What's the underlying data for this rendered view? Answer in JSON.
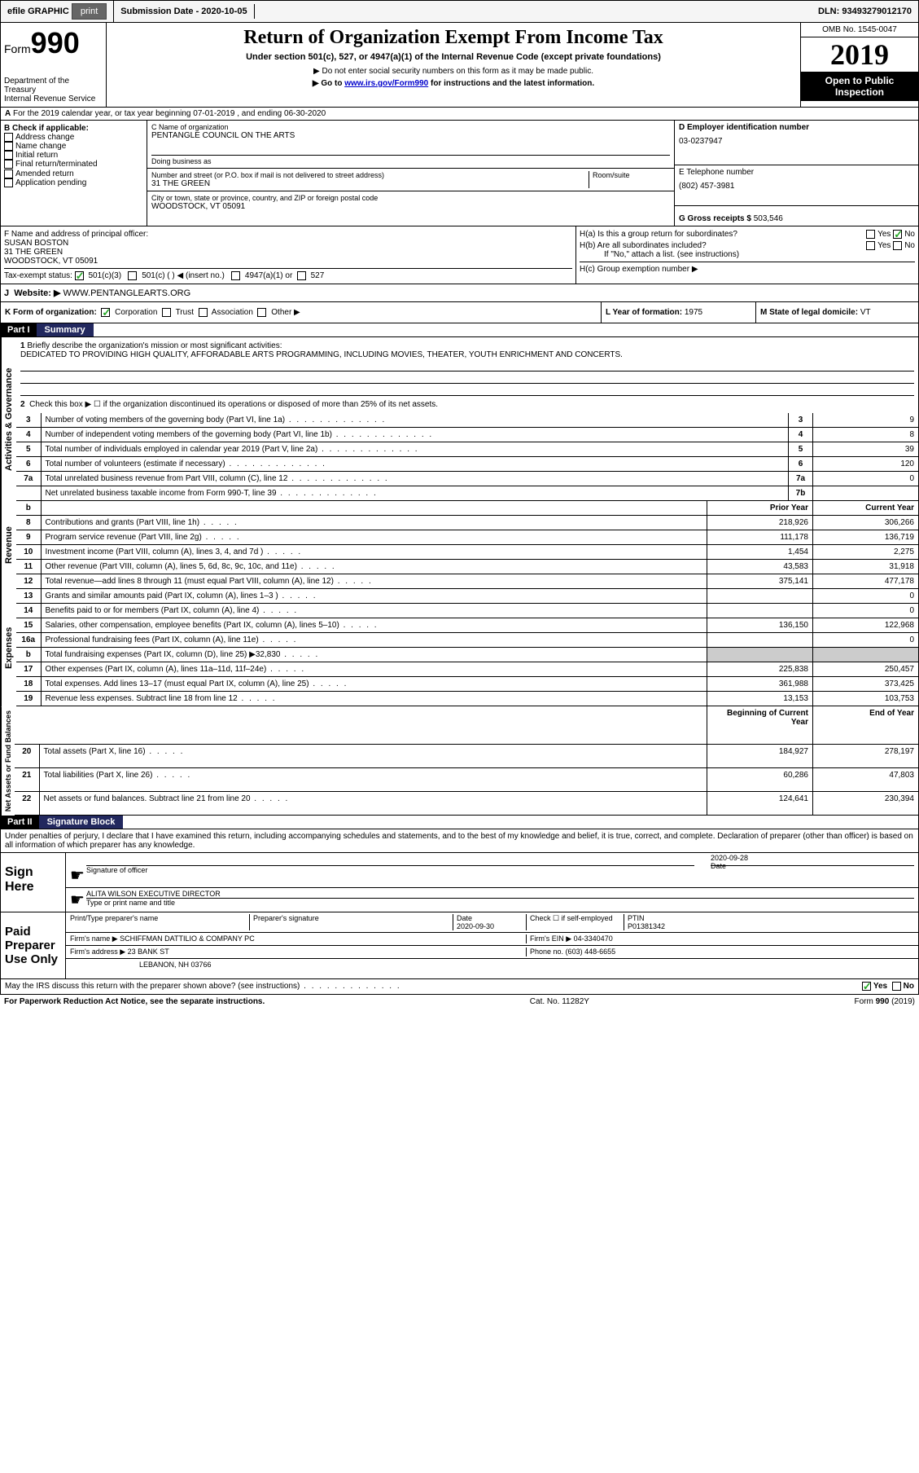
{
  "topbar": {
    "efile": "efile GRAPHIC",
    "print": "print",
    "submission_label": "Submission Date",
    "submission_date": "2020-10-05",
    "dln_label": "DLN:",
    "dln": "93493279012170"
  },
  "header": {
    "form_label": "Form",
    "form_number": "990",
    "dept": "Department of the Treasury",
    "irs": "Internal Revenue Service",
    "title": "Return of Organization Exempt From Income Tax",
    "subtitle": "Under section 501(c), 527, or 4947(a)(1) of the Internal Revenue Code (except private foundations)",
    "note1": "▶ Do not enter social security numbers on this form as it may be made public.",
    "note2_pre": "▶ Go to ",
    "note2_link": "www.irs.gov/Form990",
    "note2_post": " for instructions and the latest information.",
    "omb": "OMB No. 1545-0047",
    "year": "2019",
    "open": "Open to Public Inspection"
  },
  "section_a": "For the 2019 calendar year, or tax year beginning 07-01-2019    , and ending 06-30-2020",
  "col_b": {
    "label": "B Check if applicable:",
    "opts": [
      "Address change",
      "Name change",
      "Initial return",
      "Final return/terminated",
      "Amended return",
      "Application pending"
    ]
  },
  "col_c": {
    "name_label": "C Name of organization",
    "name": "PENTANGLE COUNCIL ON THE ARTS",
    "dba_label": "Doing business as",
    "addr_label": "Number and street (or P.O. box if mail is not delivered to street address)",
    "room_label": "Room/suite",
    "addr": "31 THE GREEN",
    "city_label": "City or town, state or province, country, and ZIP or foreign postal code",
    "city": "WOODSTOCK, VT  05091"
  },
  "col_d": {
    "ein_label": "D Employer identification number",
    "ein": "03-0237947",
    "phone_label": "E Telephone number",
    "phone": "(802) 457-3981",
    "gross_label": "G Gross receipts $",
    "gross": "503,546"
  },
  "row_f": {
    "label": "F  Name and address of principal officer:",
    "name": "SUSAN BOSTON",
    "addr1": "31 THE GREEN",
    "addr2": "WOODSTOCK, VT  05091"
  },
  "row_h": {
    "a": "H(a)  Is this a group return for subordinates?",
    "b": "H(b)  Are all subordinates included?",
    "b_note": "If \"No,\" attach a list. (see instructions)",
    "c": "H(c)  Group exemption number ▶",
    "yes": "Yes",
    "no": "No"
  },
  "row_i": {
    "label": "Tax-exempt status:",
    "opts": [
      "501(c)(3)",
      "501(c) (  ) ◀ (insert no.)",
      "4947(a)(1) or",
      "527"
    ]
  },
  "row_j": {
    "label": "J",
    "website_label": "Website: ▶",
    "website": "WWW.PENTANGLEARTS.ORG"
  },
  "row_k": {
    "label": "K Form of organization:",
    "opts": [
      "Corporation",
      "Trust",
      "Association",
      "Other ▶"
    ]
  },
  "row_l": {
    "label": "L Year of formation:",
    "val": "1975"
  },
  "row_m": {
    "label": "M State of legal domicile:",
    "val": "VT"
  },
  "part1": {
    "header": "Part I",
    "title": "Summary",
    "q1_label": "1",
    "q1": "Briefly describe the organization's mission or most significant activities:",
    "q1_text": "DEDICATED TO PROVIDING HIGH QUALITY, AFFORADABLE ARTS PROGRAMMING, INCLUDING MOVIES, THEATER, YOUTH ENRICHMENT AND CONCERTS.",
    "q2": "Check this box ▶ ☐ if the organization discontinued its operations or disposed of more than 25% of its net assets.",
    "vert_labels": [
      "Activities & Governance",
      "Revenue",
      "Expenses",
      "Net Assets or Fund Balances"
    ],
    "rows_gov": [
      {
        "n": "3",
        "label": "Number of voting members of the governing body (Part VI, line 1a)",
        "box": "3",
        "val": "9"
      },
      {
        "n": "4",
        "label": "Number of independent voting members of the governing body (Part VI, line 1b)",
        "box": "4",
        "val": "8"
      },
      {
        "n": "5",
        "label": "Total number of individuals employed in calendar year 2019 (Part V, line 2a)",
        "box": "5",
        "val": "39"
      },
      {
        "n": "6",
        "label": "Total number of volunteers (estimate if necessary)",
        "box": "6",
        "val": "120"
      },
      {
        "n": "7a",
        "label": "Total unrelated business revenue from Part VIII, column (C), line 12",
        "box": "7a",
        "val": "0"
      },
      {
        "n": "",
        "label": "Net unrelated business taxable income from Form 990-T, line 39",
        "box": "7b",
        "val": ""
      }
    ],
    "col_headers": {
      "prior": "Prior Year",
      "current": "Current Year"
    },
    "rows_rev": [
      {
        "n": "8",
        "label": "Contributions and grants (Part VIII, line 1h)",
        "prior": "218,926",
        "current": "306,266"
      },
      {
        "n": "9",
        "label": "Program service revenue (Part VIII, line 2g)",
        "prior": "111,178",
        "current": "136,719"
      },
      {
        "n": "10",
        "label": "Investment income (Part VIII, column (A), lines 3, 4, and 7d )",
        "prior": "1,454",
        "current": "2,275"
      },
      {
        "n": "11",
        "label": "Other revenue (Part VIII, column (A), lines 5, 6d, 8c, 9c, 10c, and 11e)",
        "prior": "43,583",
        "current": "31,918"
      },
      {
        "n": "12",
        "label": "Total revenue—add lines 8 through 11 (must equal Part VIII, column (A), line 12)",
        "prior": "375,141",
        "current": "477,178"
      }
    ],
    "rows_exp": [
      {
        "n": "13",
        "label": "Grants and similar amounts paid (Part IX, column (A), lines 1–3 )",
        "prior": "",
        "current": "0"
      },
      {
        "n": "14",
        "label": "Benefits paid to or for members (Part IX, column (A), line 4)",
        "prior": "",
        "current": "0"
      },
      {
        "n": "15",
        "label": "Salaries, other compensation, employee benefits (Part IX, column (A), lines 5–10)",
        "prior": "136,150",
        "current": "122,968"
      },
      {
        "n": "16a",
        "label": "Professional fundraising fees (Part IX, column (A), line 11e)",
        "prior": "",
        "current": "0"
      },
      {
        "n": "b",
        "label": "Total fundraising expenses (Part IX, column (D), line 25) ▶32,830",
        "prior": "GRAY",
        "current": "GRAY"
      },
      {
        "n": "17",
        "label": "Other expenses (Part IX, column (A), lines 11a–11d, 11f–24e)",
        "prior": "225,838",
        "current": "250,457"
      },
      {
        "n": "18",
        "label": "Total expenses. Add lines 13–17 (must equal Part IX, column (A), line 25)",
        "prior": "361,988",
        "current": "373,425"
      },
      {
        "n": "19",
        "label": "Revenue less expenses. Subtract line 18 from line 12",
        "prior": "13,153",
        "current": "103,753"
      }
    ],
    "col_headers2": {
      "begin": "Beginning of Current Year",
      "end": "End of Year"
    },
    "rows_net": [
      {
        "n": "20",
        "label": "Total assets (Part X, line 16)",
        "prior": "184,927",
        "current": "278,197"
      },
      {
        "n": "21",
        "label": "Total liabilities (Part X, line 26)",
        "prior": "60,286",
        "current": "47,803"
      },
      {
        "n": "22",
        "label": "Net assets or fund balances. Subtract line 21 from line 20",
        "prior": "124,641",
        "current": "230,394"
      }
    ]
  },
  "part2": {
    "header": "Part II",
    "title": "Signature Block",
    "declaration": "Under penalties of perjury, I declare that I have examined this return, including accompanying schedules and statements, and to the best of my knowledge and belief, it is true, correct, and complete. Declaration of preparer (other than officer) is based on all information of which preparer has any knowledge."
  },
  "sign": {
    "label": "Sign Here",
    "sig_label": "Signature of officer",
    "date_label": "Date",
    "date": "2020-09-28",
    "name": "ALITA WILSON  EXECUTIVE DIRECTOR",
    "name_label": "Type or print name and title"
  },
  "preparer": {
    "label": "Paid Preparer Use Only",
    "print_label": "Print/Type preparer's name",
    "sig_label": "Preparer's signature",
    "date_label": "Date",
    "date": "2020-09-30",
    "check_label": "Check ☐ if self-employed",
    "ptin_label": "PTIN",
    "ptin": "P01381342",
    "firm_name_label": "Firm's name    ▶",
    "firm_name": "SCHIFFMAN DATTILIO & COMPANY PC",
    "firm_ein_label": "Firm's EIN ▶",
    "firm_ein": "04-3340470",
    "firm_addr_label": "Firm's address ▶",
    "firm_addr": "23 BANK ST",
    "firm_city": "LEBANON, NH  03766",
    "phone_label": "Phone no.",
    "phone": "(603) 448-6655"
  },
  "footer": {
    "discuss": "May the IRS discuss this return with the preparer shown above? (see instructions)",
    "yes": "Yes",
    "no": "No",
    "paperwork": "For Paperwork Reduction Act Notice, see the separate instructions.",
    "cat": "Cat. No. 11282Y",
    "form": "Form 990 (2019)"
  }
}
